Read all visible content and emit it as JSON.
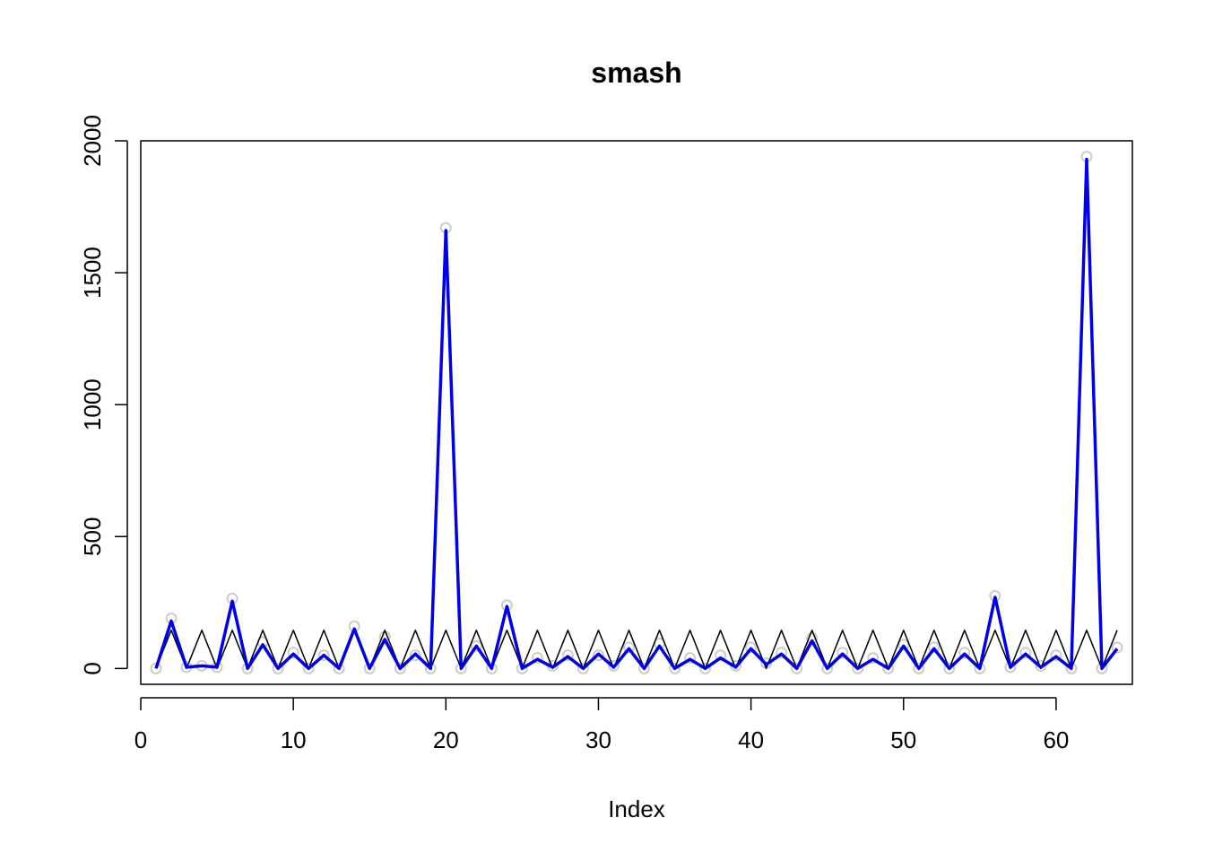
{
  "chart_data": {
    "type": "line",
    "title": "smash",
    "xlabel": "Index",
    "ylabel": "",
    "xlim": [
      0,
      65
    ],
    "ylim": [
      -60,
      2000
    ],
    "xticks": [
      0,
      10,
      20,
      30,
      40,
      50,
      60
    ],
    "yticks": [
      0,
      500,
      1000,
      1500,
      2000
    ],
    "grid": false,
    "legend": "none",
    "x": [
      1,
      2,
      3,
      4,
      5,
      6,
      7,
      8,
      9,
      10,
      11,
      12,
      13,
      14,
      15,
      16,
      17,
      18,
      19,
      20,
      21,
      22,
      23,
      24,
      25,
      26,
      27,
      28,
      29,
      30,
      31,
      32,
      33,
      34,
      35,
      36,
      37,
      38,
      39,
      40,
      41,
      42,
      43,
      44,
      45,
      46,
      47,
      48,
      49,
      50,
      51,
      52,
      53,
      54,
      55,
      56,
      57,
      58,
      59,
      60,
      61,
      62,
      63,
      64
    ],
    "series": [
      {
        "kind": "points",
        "color": "#cccccc",
        "values": [
          0,
          190,
          5,
          10,
          5,
          265,
          0,
          100,
          0,
          60,
          0,
          50,
          0,
          160,
          0,
          120,
          0,
          50,
          0,
          1670,
          0,
          85,
          0,
          240,
          0,
          40,
          10,
          50,
          0,
          50,
          10,
          80,
          0,
          95,
          0,
          40,
          0,
          50,
          10,
          80,
          20,
          60,
          0,
          115,
          0,
          60,
          0,
          40,
          0,
          90,
          0,
          80,
          0,
          60,
          0,
          275,
          5,
          60,
          10,
          50,
          0,
          1940,
          0,
          80
        ]
      },
      {
        "kind": "line",
        "color": "#000000",
        "values": [
          0,
          145,
          0,
          145,
          0,
          145,
          0,
          145,
          0,
          145,
          0,
          145,
          0,
          145,
          0,
          145,
          0,
          145,
          0,
          145,
          0,
          145,
          0,
          145,
          0,
          145,
          0,
          145,
          0,
          145,
          0,
          145,
          0,
          145,
          0,
          145,
          0,
          145,
          0,
          145,
          0,
          145,
          0,
          145,
          0,
          145,
          0,
          145,
          0,
          145,
          0,
          145,
          0,
          145,
          0,
          145,
          0,
          145,
          0,
          145,
          0,
          145,
          0,
          145
        ]
      },
      {
        "kind": "line",
        "color": "#0000ee",
        "values": [
          0,
          180,
          5,
          10,
          5,
          255,
          0,
          90,
          0,
          55,
          0,
          50,
          0,
          150,
          0,
          110,
          0,
          55,
          0,
          1660,
          0,
          85,
          0,
          235,
          0,
          35,
          5,
          45,
          0,
          55,
          5,
          75,
          0,
          85,
          0,
          35,
          0,
          40,
          5,
          75,
          15,
          55,
          0,
          105,
          0,
          55,
          0,
          35,
          0,
          85,
          0,
          75,
          0,
          55,
          0,
          270,
          5,
          55,
          5,
          45,
          0,
          1930,
          0,
          75
        ]
      }
    ]
  }
}
